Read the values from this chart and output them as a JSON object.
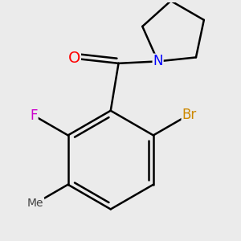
{
  "background_color": "#ebebeb",
  "bond_color": "#000000",
  "atom_colors": {
    "O": "#ff0000",
    "F": "#cc00cc",
    "Br": "#cc8800",
    "N": "#0000ff",
    "C": "#000000"
  },
  "bond_width": 1.8,
  "font_size_atoms": 12
}
